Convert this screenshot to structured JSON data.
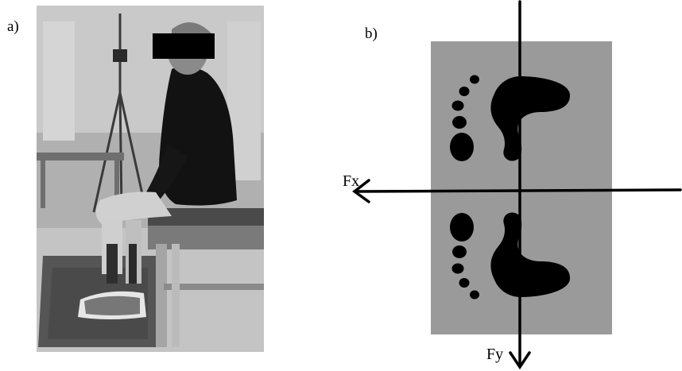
{
  "panels": {
    "a": {
      "label": "a)"
    },
    "b": {
      "label": "b)"
    }
  },
  "axes": {
    "fx": "Fx",
    "fy": "Fy"
  },
  "colors": {
    "plate": "#9a9a9a",
    "ink": "#000000",
    "background": "#ffffff"
  }
}
